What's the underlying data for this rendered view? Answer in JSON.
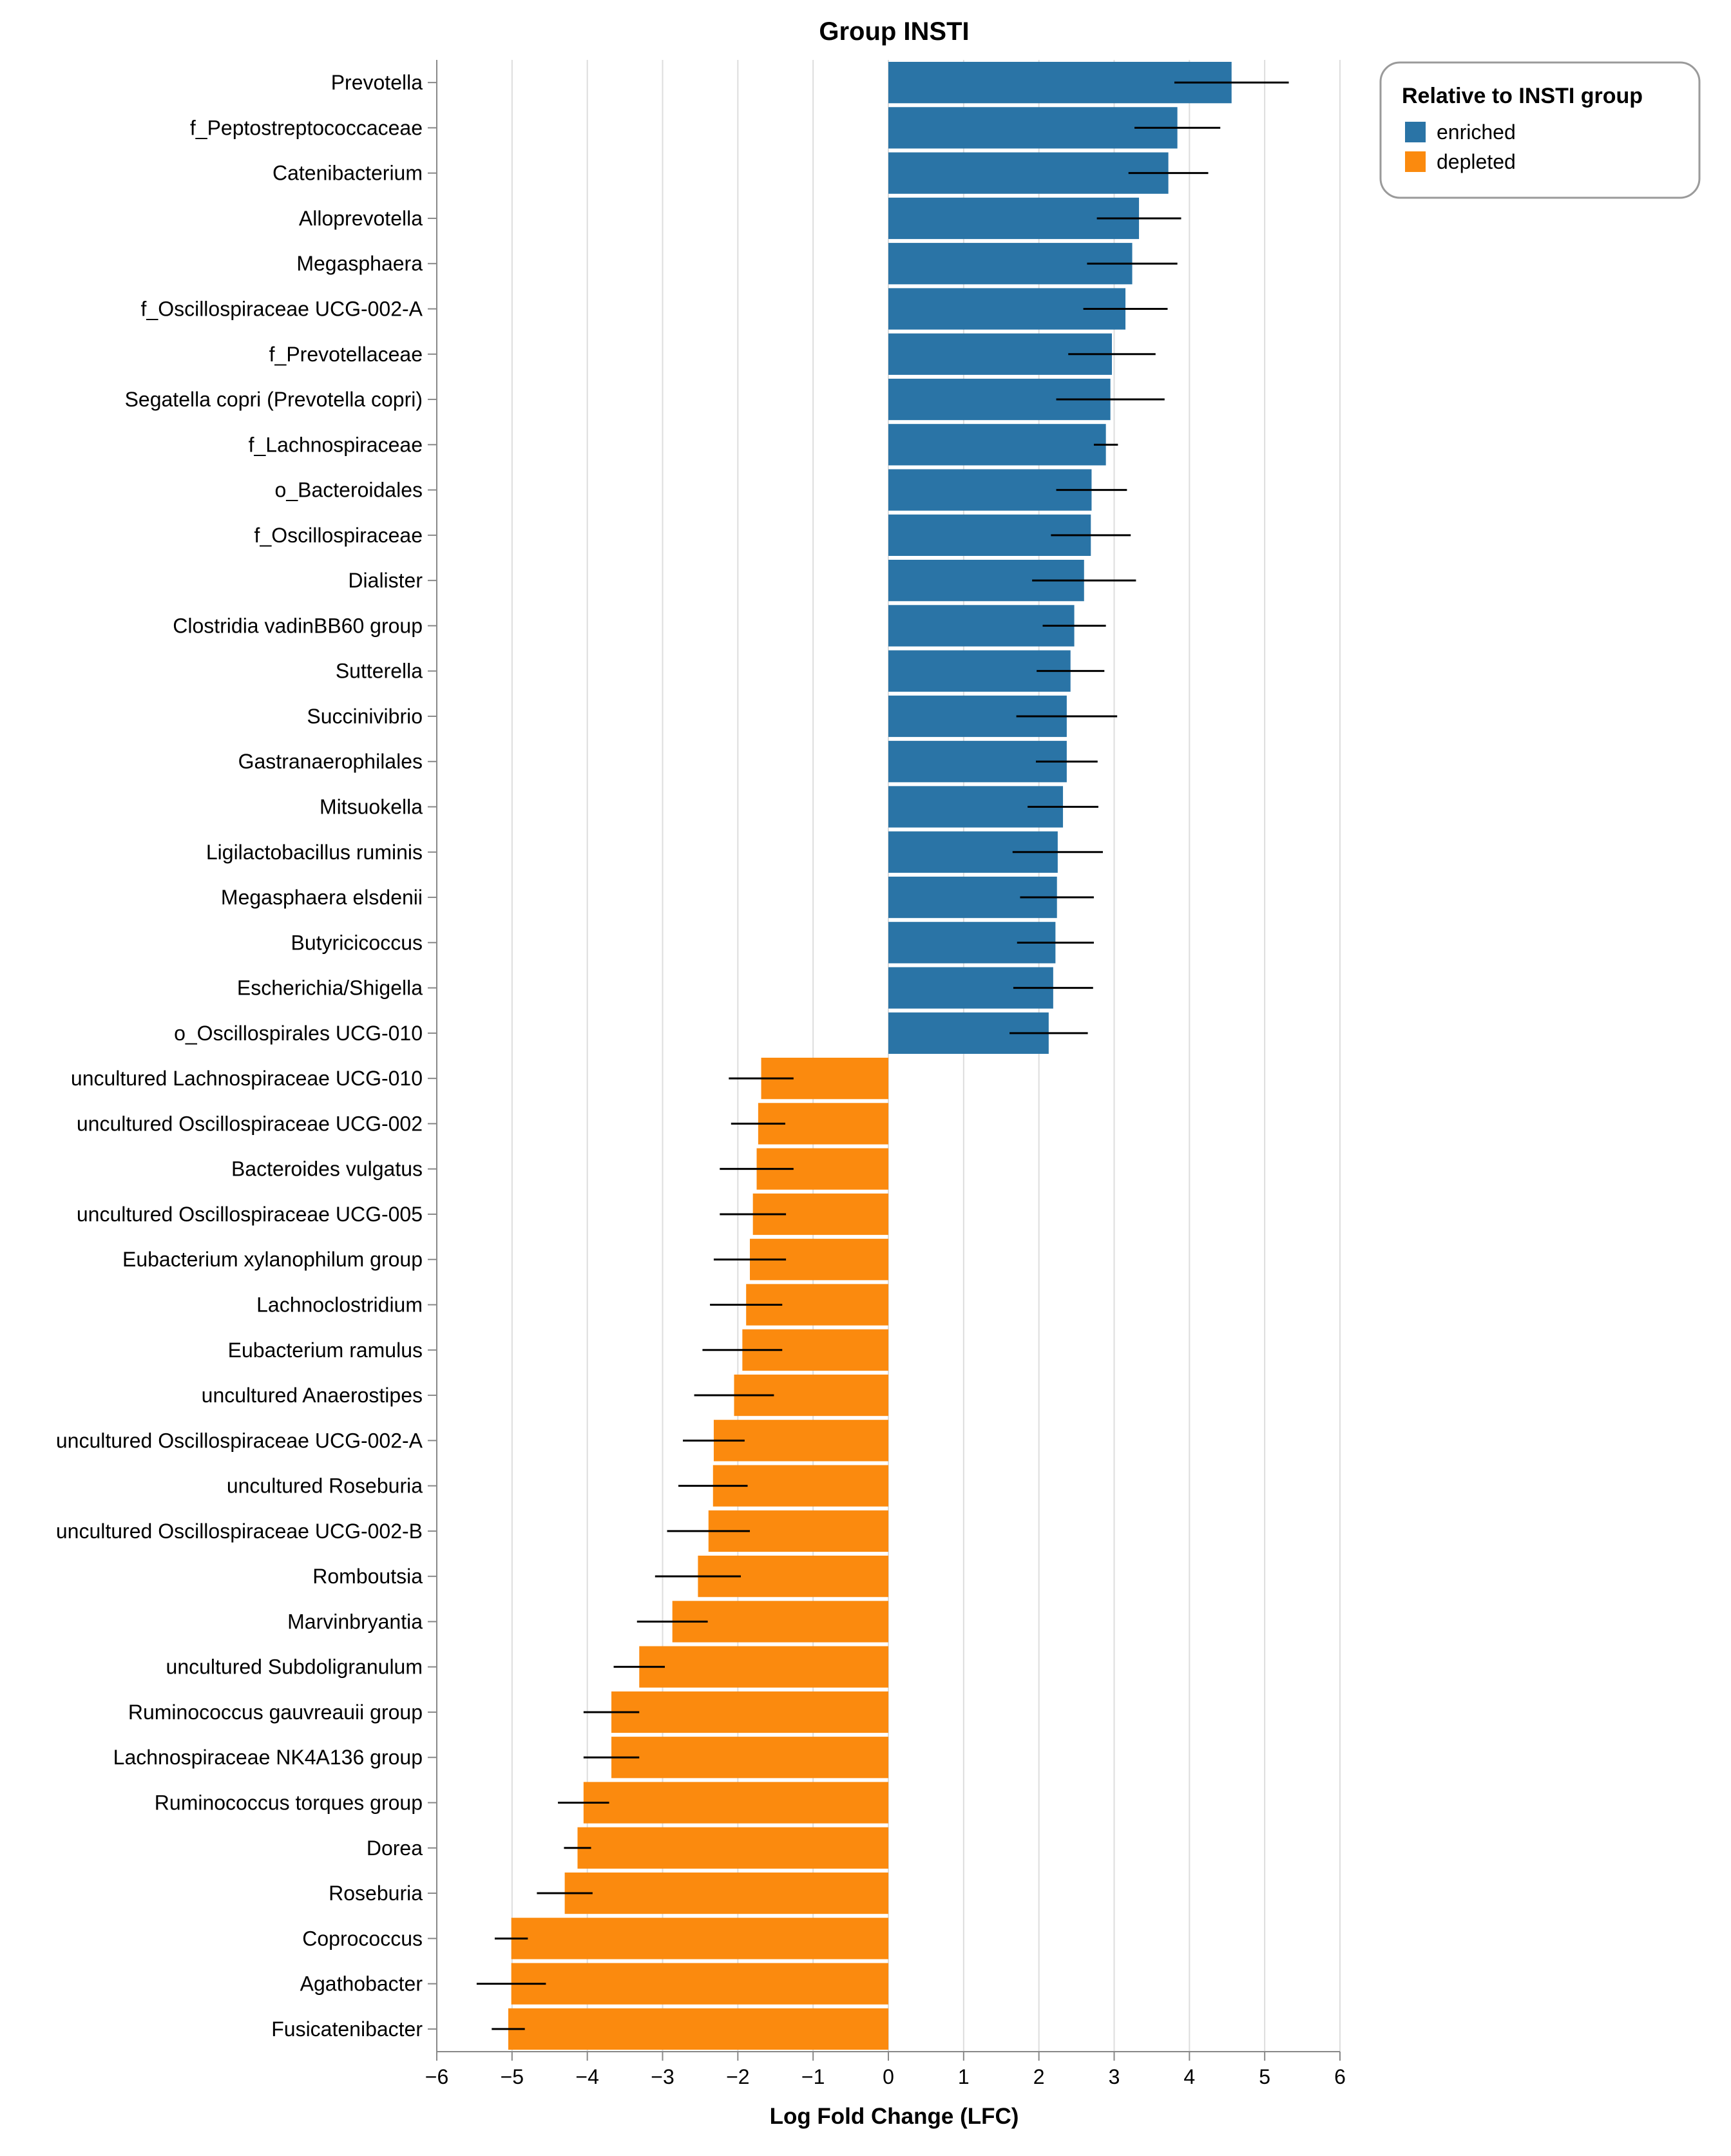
{
  "chart_data": {
    "type": "bar",
    "orientation": "horizontal",
    "title": "Group INSTI",
    "xlabel": "Log Fold Change (LFC)",
    "ylabel": "",
    "xlim": [
      -6,
      6
    ],
    "xticks": [
      -6,
      -5,
      -4,
      -3,
      -2,
      -1,
      0,
      1,
      2,
      3,
      4,
      5,
      6
    ],
    "xtick_labels": [
      "−6",
      "−5",
      "−4",
      "−3",
      "−2",
      "−1",
      "0",
      "1",
      "2",
      "3",
      "4",
      "5",
      "6"
    ],
    "grid": true,
    "legend": {
      "title": "Relative to INSTI group",
      "position": "top-right",
      "entries": [
        {
          "label": "enriched",
          "color": "#2a74a6"
        },
        {
          "label": "depleted",
          "color": "#fb8a0e"
        }
      ]
    },
    "colors": {
      "enriched": "#2a74a6",
      "depleted": "#fb8a0e",
      "error_bar": "#000000",
      "grid": "#dddddd",
      "axis": "#888888"
    },
    "categories": [
      "Prevotella",
      "f_Peptostreptococcaceae",
      "Catenibacterium",
      "Alloprevotella",
      "Megasphaera",
      "f_Oscillospiraceae UCG-002-A",
      "f_Prevotellaceae",
      "Segatella copri (Prevotella copri)",
      "f_Lachnospiraceae",
      "o_Bacteroidales",
      "f_Oscillospiraceae",
      "Dialister",
      "Clostridia vadinBB60 group",
      "Sutterella",
      "Succinivibrio",
      "Gastranaerophilales",
      "Mitsuokella",
      "Ligilactobacillus ruminis",
      "Megasphaera elsdenii",
      "Butyricicoccus",
      "Escherichia/Shigella",
      "o_Oscillospirales UCG-010",
      "uncultured Lachnospiraceae UCG-010",
      "uncultured Oscillospiraceae UCG-002",
      "Bacteroides vulgatus",
      "uncultured Oscillospiraceae UCG-005",
      "Eubacterium xylanophilum group",
      "Lachnoclostridium",
      "Eubacterium ramulus",
      "uncultured Anaerostipes",
      "uncultured Oscillospiraceae UCG-002-A",
      "uncultured Roseburia",
      "uncultured Oscillospiraceae UCG-002-B",
      "Romboutsia",
      "Marvinbryantia",
      "uncultured Subdoligranulum",
      "Ruminococcus gauvreauii group",
      "Lachnospiraceae NK4A136 group",
      "Ruminococcus torques group",
      "Dorea",
      "Roseburia",
      "Coprococcus",
      "Agathobacter",
      "Fusicatenibacter"
    ],
    "values": [
      4.56,
      3.84,
      3.72,
      3.33,
      3.24,
      3.15,
      2.97,
      2.95,
      2.89,
      2.7,
      2.69,
      2.6,
      2.47,
      2.42,
      2.37,
      2.37,
      2.32,
      2.25,
      2.24,
      2.22,
      2.19,
      2.13,
      -1.69,
      -1.73,
      -1.75,
      -1.8,
      -1.84,
      -1.89,
      -1.94,
      -2.05,
      -2.32,
      -2.33,
      -2.39,
      -2.53,
      -2.87,
      -3.31,
      -3.68,
      -3.68,
      -4.05,
      -4.13,
      -4.3,
      -5.01,
      -5.01,
      -5.05
    ],
    "error_low": [
      3.8,
      3.27,
      3.19,
      2.77,
      2.64,
      2.59,
      2.39,
      2.23,
      2.73,
      2.23,
      2.16,
      1.91,
      2.05,
      1.97,
      1.7,
      1.96,
      1.85,
      1.65,
      1.75,
      1.71,
      1.66,
      1.61,
      -2.12,
      -2.09,
      -2.24,
      -2.24,
      -2.32,
      -2.37,
      -2.47,
      -2.58,
      -2.73,
      -2.79,
      -2.94,
      -3.1,
      -3.34,
      -3.65,
      -4.05,
      -4.05,
      -4.39,
      -4.31,
      -4.67,
      -5.23,
      -5.47,
      -5.27
    ],
    "error_high": [
      5.32,
      4.41,
      4.25,
      3.89,
      3.84,
      3.71,
      3.55,
      3.67,
      3.05,
      3.17,
      3.22,
      3.29,
      2.89,
      2.87,
      3.04,
      2.78,
      2.79,
      2.85,
      2.73,
      2.73,
      2.72,
      2.65,
      -1.26,
      -1.37,
      -1.26,
      -1.36,
      -1.36,
      -1.41,
      -1.41,
      -1.52,
      -1.91,
      -1.87,
      -1.84,
      -1.96,
      -2.4,
      -2.97,
      -3.31,
      -3.31,
      -3.71,
      -3.95,
      -3.93,
      -4.79,
      -4.55,
      -4.83
    ],
    "n_enriched": 22
  }
}
